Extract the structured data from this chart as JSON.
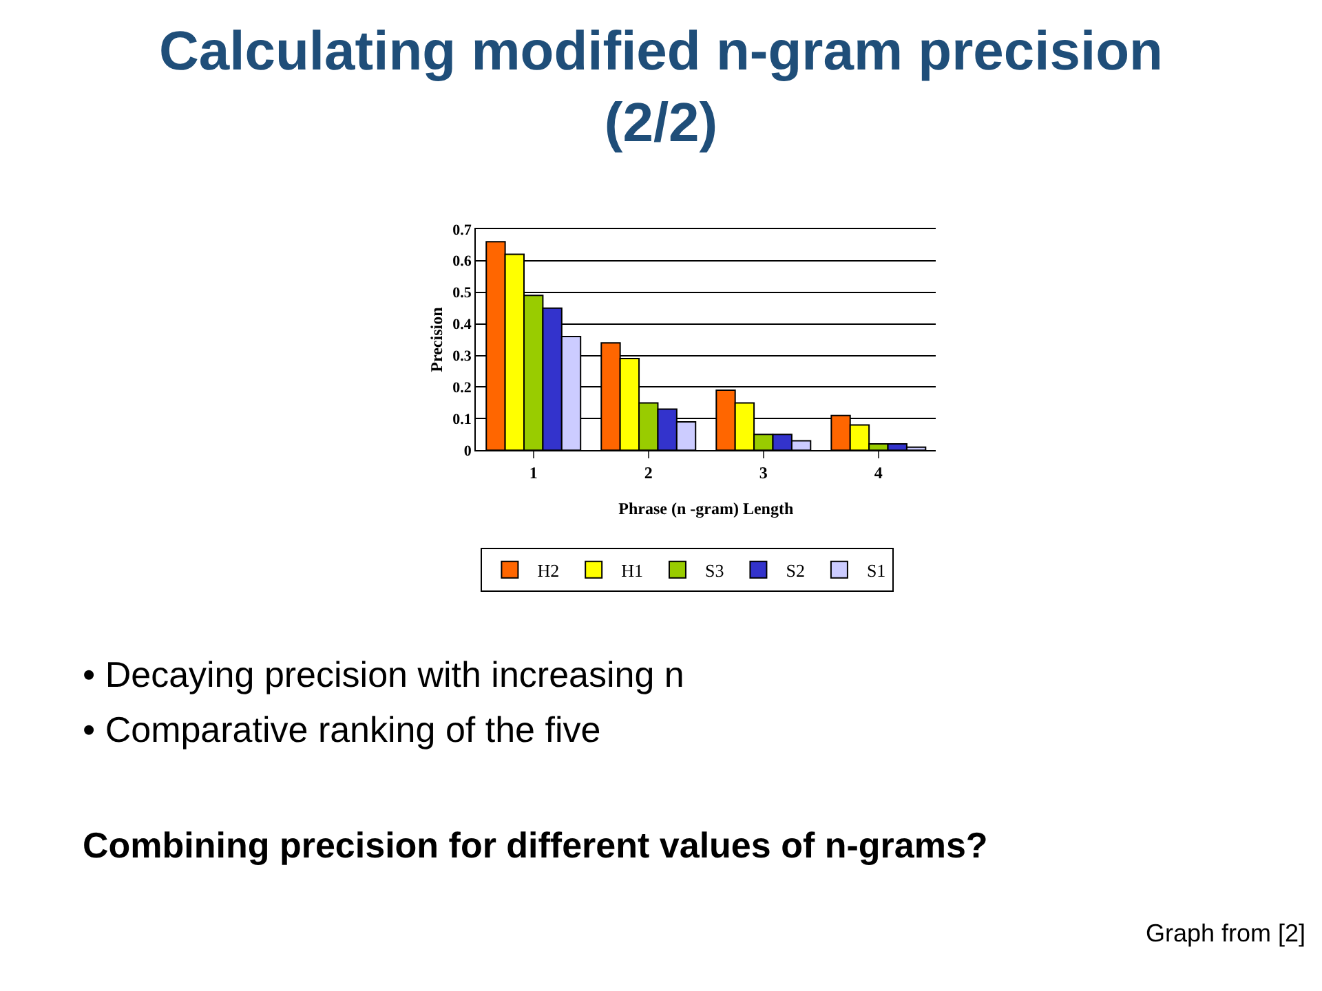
{
  "chart_data": {
    "type": "bar",
    "title": "Calculating modified n-gram precision (2/2)",
    "categories": [
      "1",
      "2",
      "3",
      "4"
    ],
    "series": [
      {
        "name": "H2",
        "color": "#ff6600",
        "values": [
          0.66,
          0.34,
          0.19,
          0.11
        ]
      },
      {
        "name": "H1",
        "color": "#ffff00",
        "values": [
          0.62,
          0.29,
          0.15,
          0.08
        ]
      },
      {
        "name": "S3",
        "color": "#99cc00",
        "values": [
          0.49,
          0.15,
          0.05,
          0.02
        ]
      },
      {
        "name": "S2",
        "color": "#3333cc",
        "values": [
          0.45,
          0.13,
          0.05,
          0.02
        ]
      },
      {
        "name": "S1",
        "color": "#ccccff",
        "values": [
          0.36,
          0.09,
          0.03,
          0.01
        ]
      }
    ],
    "xlabel": "Phrase (n -gram) Length",
    "ylabel": "Precision",
    "ylim": [
      0,
      0.7
    ],
    "yticks": [
      0,
      0.1,
      0.2,
      0.3,
      0.4,
      0.5,
      0.6,
      0.7
    ],
    "grid": "y",
    "legend": "bottom",
    "annotations": [
      "• Decaying precision with increasing n",
      "• Comparative ranking of the five",
      "Combining precision for different values of n-grams?",
      "Graph from [2]"
    ]
  }
}
